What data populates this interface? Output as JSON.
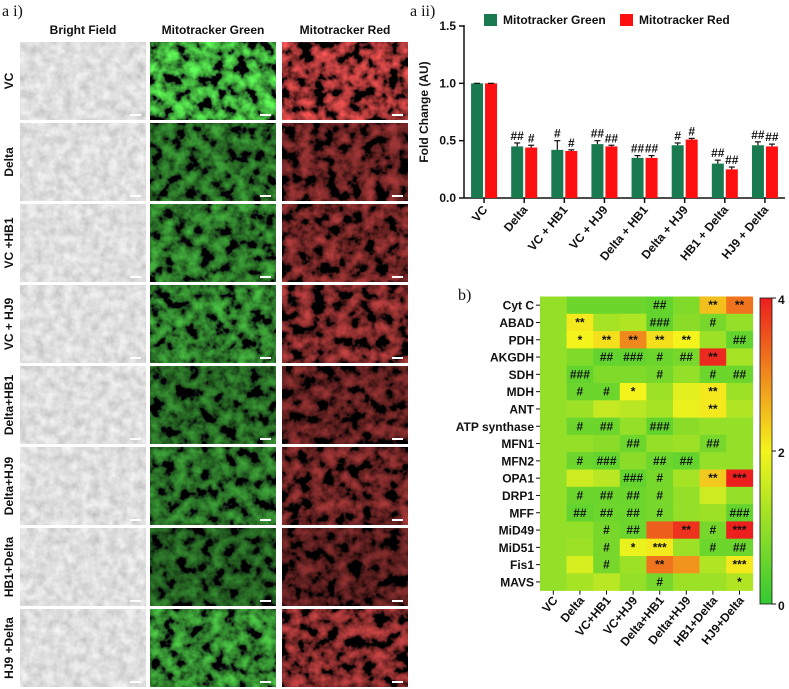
{
  "panel_a_i": {
    "label": "a i)",
    "column_headers": [
      "Bright Field",
      "Mitotracker Green",
      "Mitotracker Red"
    ],
    "row_labels": [
      "VC",
      "Delta",
      "VC +HB1",
      "VC + HJ9",
      "Delta+HB1",
      "Delta+HJ9",
      "HB1+Delta",
      "HJ9 +Delta"
    ]
  },
  "chart_data": [
    {
      "type": "bar",
      "panel_label": "a ii)",
      "ylabel": "Fold Change (AU)",
      "categories": [
        "VC",
        "Delta",
        "VC + HB1",
        "VC + HJ9",
        "Delta + HB1",
        "Delta + HJ9",
        "HB1 + Delta",
        "HJ9 + Delta"
      ],
      "series": [
        {
          "name": "Mitotracker Green",
          "color": "#1a7a4f",
          "values": [
            1.0,
            0.45,
            0.42,
            0.47,
            0.35,
            0.46,
            0.3,
            0.46
          ],
          "errors": [
            0,
            0.03,
            0.08,
            0.03,
            0.02,
            0.02,
            0.03,
            0.03
          ],
          "annotations": [
            null,
            "##",
            "#",
            "##",
            "##",
            "#",
            "##",
            "##"
          ]
        },
        {
          "name": "Mitotracker Red",
          "color": "#ff1010",
          "values": [
            1.0,
            0.44,
            0.41,
            0.45,
            0.35,
            0.51,
            0.25,
            0.45
          ],
          "errors": [
            0,
            0.02,
            0.01,
            0.01,
            0.02,
            0.01,
            0.02,
            0.02
          ],
          "annotations": [
            null,
            "#",
            "#",
            "##",
            "##",
            "#",
            "##",
            "##"
          ]
        }
      ],
      "ylim": [
        0,
        1.5
      ],
      "yticks": [
        {
          "value": 0,
          "label": "0.0"
        },
        {
          "value": 0.5,
          "label": "0.5"
        },
        {
          "value": 1,
          "label": "1.0"
        },
        {
          "value": 1.5,
          "label": "1.5"
        }
      ],
      "legend": "top"
    },
    {
      "type": "heatmap",
      "panel_label": "b)",
      "rows": [
        "Cyt C",
        "ABAD",
        "PDH",
        "AKGDH",
        "SDH",
        "MDH",
        "ANT",
        "ATP synthase",
        "MFN1",
        "MFN2",
        "OPA1",
        "DRP1",
        "MFF",
        "MiD49",
        "MiD51",
        "Fis1",
        "MAVS"
      ],
      "columns": [
        "VC",
        "Delta",
        "VC+HB1",
        "VC+HJ9",
        "Delta+HB1",
        "Delta+HJ9",
        "HB1+Delta",
        "HJ9+Delta"
      ],
      "values": [
        [
          1,
          0.6,
          0.6,
          0.6,
          0.5,
          0.8,
          2.5,
          3.2
        ],
        [
          1,
          2.1,
          1.2,
          1.3,
          0.5,
          0.9,
          0.7,
          1.0
        ],
        [
          1,
          2.0,
          2.2,
          3.0,
          2.2,
          2.0,
          1.1,
          0.5
        ],
        [
          1,
          0.8,
          0.5,
          0.5,
          0.6,
          0.7,
          3.9,
          1.2
        ],
        [
          1,
          0.5,
          0.8,
          0.8,
          0.7,
          1.0,
          0.6,
          0.6
        ],
        [
          1,
          0.6,
          0.6,
          2.0,
          1.1,
          1.8,
          2.1,
          1.1
        ],
        [
          1,
          1.1,
          1.5,
          1.4,
          1.2,
          1.9,
          2.1,
          1.3
        ],
        [
          1,
          0.6,
          0.6,
          1.0,
          0.5,
          0.9,
          1.0,
          1.0
        ],
        [
          1,
          1.0,
          0.9,
          0.6,
          1.0,
          1.1,
          0.7,
          1.0
        ],
        [
          1,
          0.6,
          0.5,
          0.9,
          0.6,
          0.5,
          1.0,
          1.0
        ],
        [
          1,
          1.6,
          1.4,
          0.5,
          0.7,
          1.2,
          2.4,
          4.0
        ],
        [
          1,
          0.6,
          0.6,
          0.6,
          0.7,
          1.0,
          1.6,
          1.0
        ],
        [
          1,
          0.5,
          0.6,
          0.6,
          0.7,
          1.0,
          1.1,
          0.5
        ],
        [
          1,
          1.0,
          0.7,
          0.6,
          3.4,
          3.8,
          0.7,
          4.0
        ],
        [
          1,
          1.1,
          0.7,
          1.9,
          2.1,
          1.1,
          0.6,
          0.6
        ],
        [
          1,
          1.7,
          0.7,
          1.1,
          3.2,
          2.9,
          1.3,
          2.1
        ],
        [
          1,
          1.2,
          1.4,
          1.0,
          0.7,
          1.1,
          1.1,
          1.3
        ]
      ],
      "annotations": [
        [
          null,
          null,
          null,
          null,
          "##",
          null,
          "**",
          "**"
        ],
        [
          null,
          "**",
          null,
          null,
          "###",
          null,
          "#",
          null
        ],
        [
          null,
          "*",
          "**",
          "**",
          "**",
          "**",
          null,
          "##"
        ],
        [
          null,
          null,
          "##",
          "###",
          "#",
          "##",
          "**",
          null
        ],
        [
          null,
          "###",
          null,
          null,
          "#",
          null,
          "#",
          "##"
        ],
        [
          null,
          "#",
          "#",
          "*",
          null,
          null,
          "**",
          null
        ],
        [
          null,
          null,
          null,
          null,
          null,
          null,
          "**",
          null
        ],
        [
          null,
          "#",
          "##",
          null,
          "###",
          null,
          null,
          null
        ],
        [
          null,
          null,
          null,
          "##",
          null,
          null,
          "##",
          null
        ],
        [
          null,
          "#",
          "###",
          null,
          "##",
          "##",
          null,
          null
        ],
        [
          null,
          null,
          null,
          "###",
          "#",
          null,
          "**",
          "***"
        ],
        [
          null,
          "#",
          "##",
          "##",
          "#",
          null,
          null,
          null
        ],
        [
          null,
          "##",
          "##",
          "##",
          "#",
          null,
          null,
          "###"
        ],
        [
          null,
          null,
          "#",
          "##",
          null,
          "**",
          "#",
          "***"
        ],
        [
          null,
          null,
          "#",
          "*",
          "***",
          null,
          "#",
          "##"
        ],
        [
          null,
          null,
          "#",
          null,
          "**",
          null,
          null,
          "***"
        ],
        [
          null,
          null,
          null,
          null,
          "#",
          null,
          null,
          "*"
        ]
      ],
      "colorscale": [
        "#33c933",
        "#f4f41c",
        "#ec1e1e"
      ],
      "zlim": [
        0,
        4
      ],
      "zticks": [
        0,
        2,
        4
      ]
    }
  ]
}
